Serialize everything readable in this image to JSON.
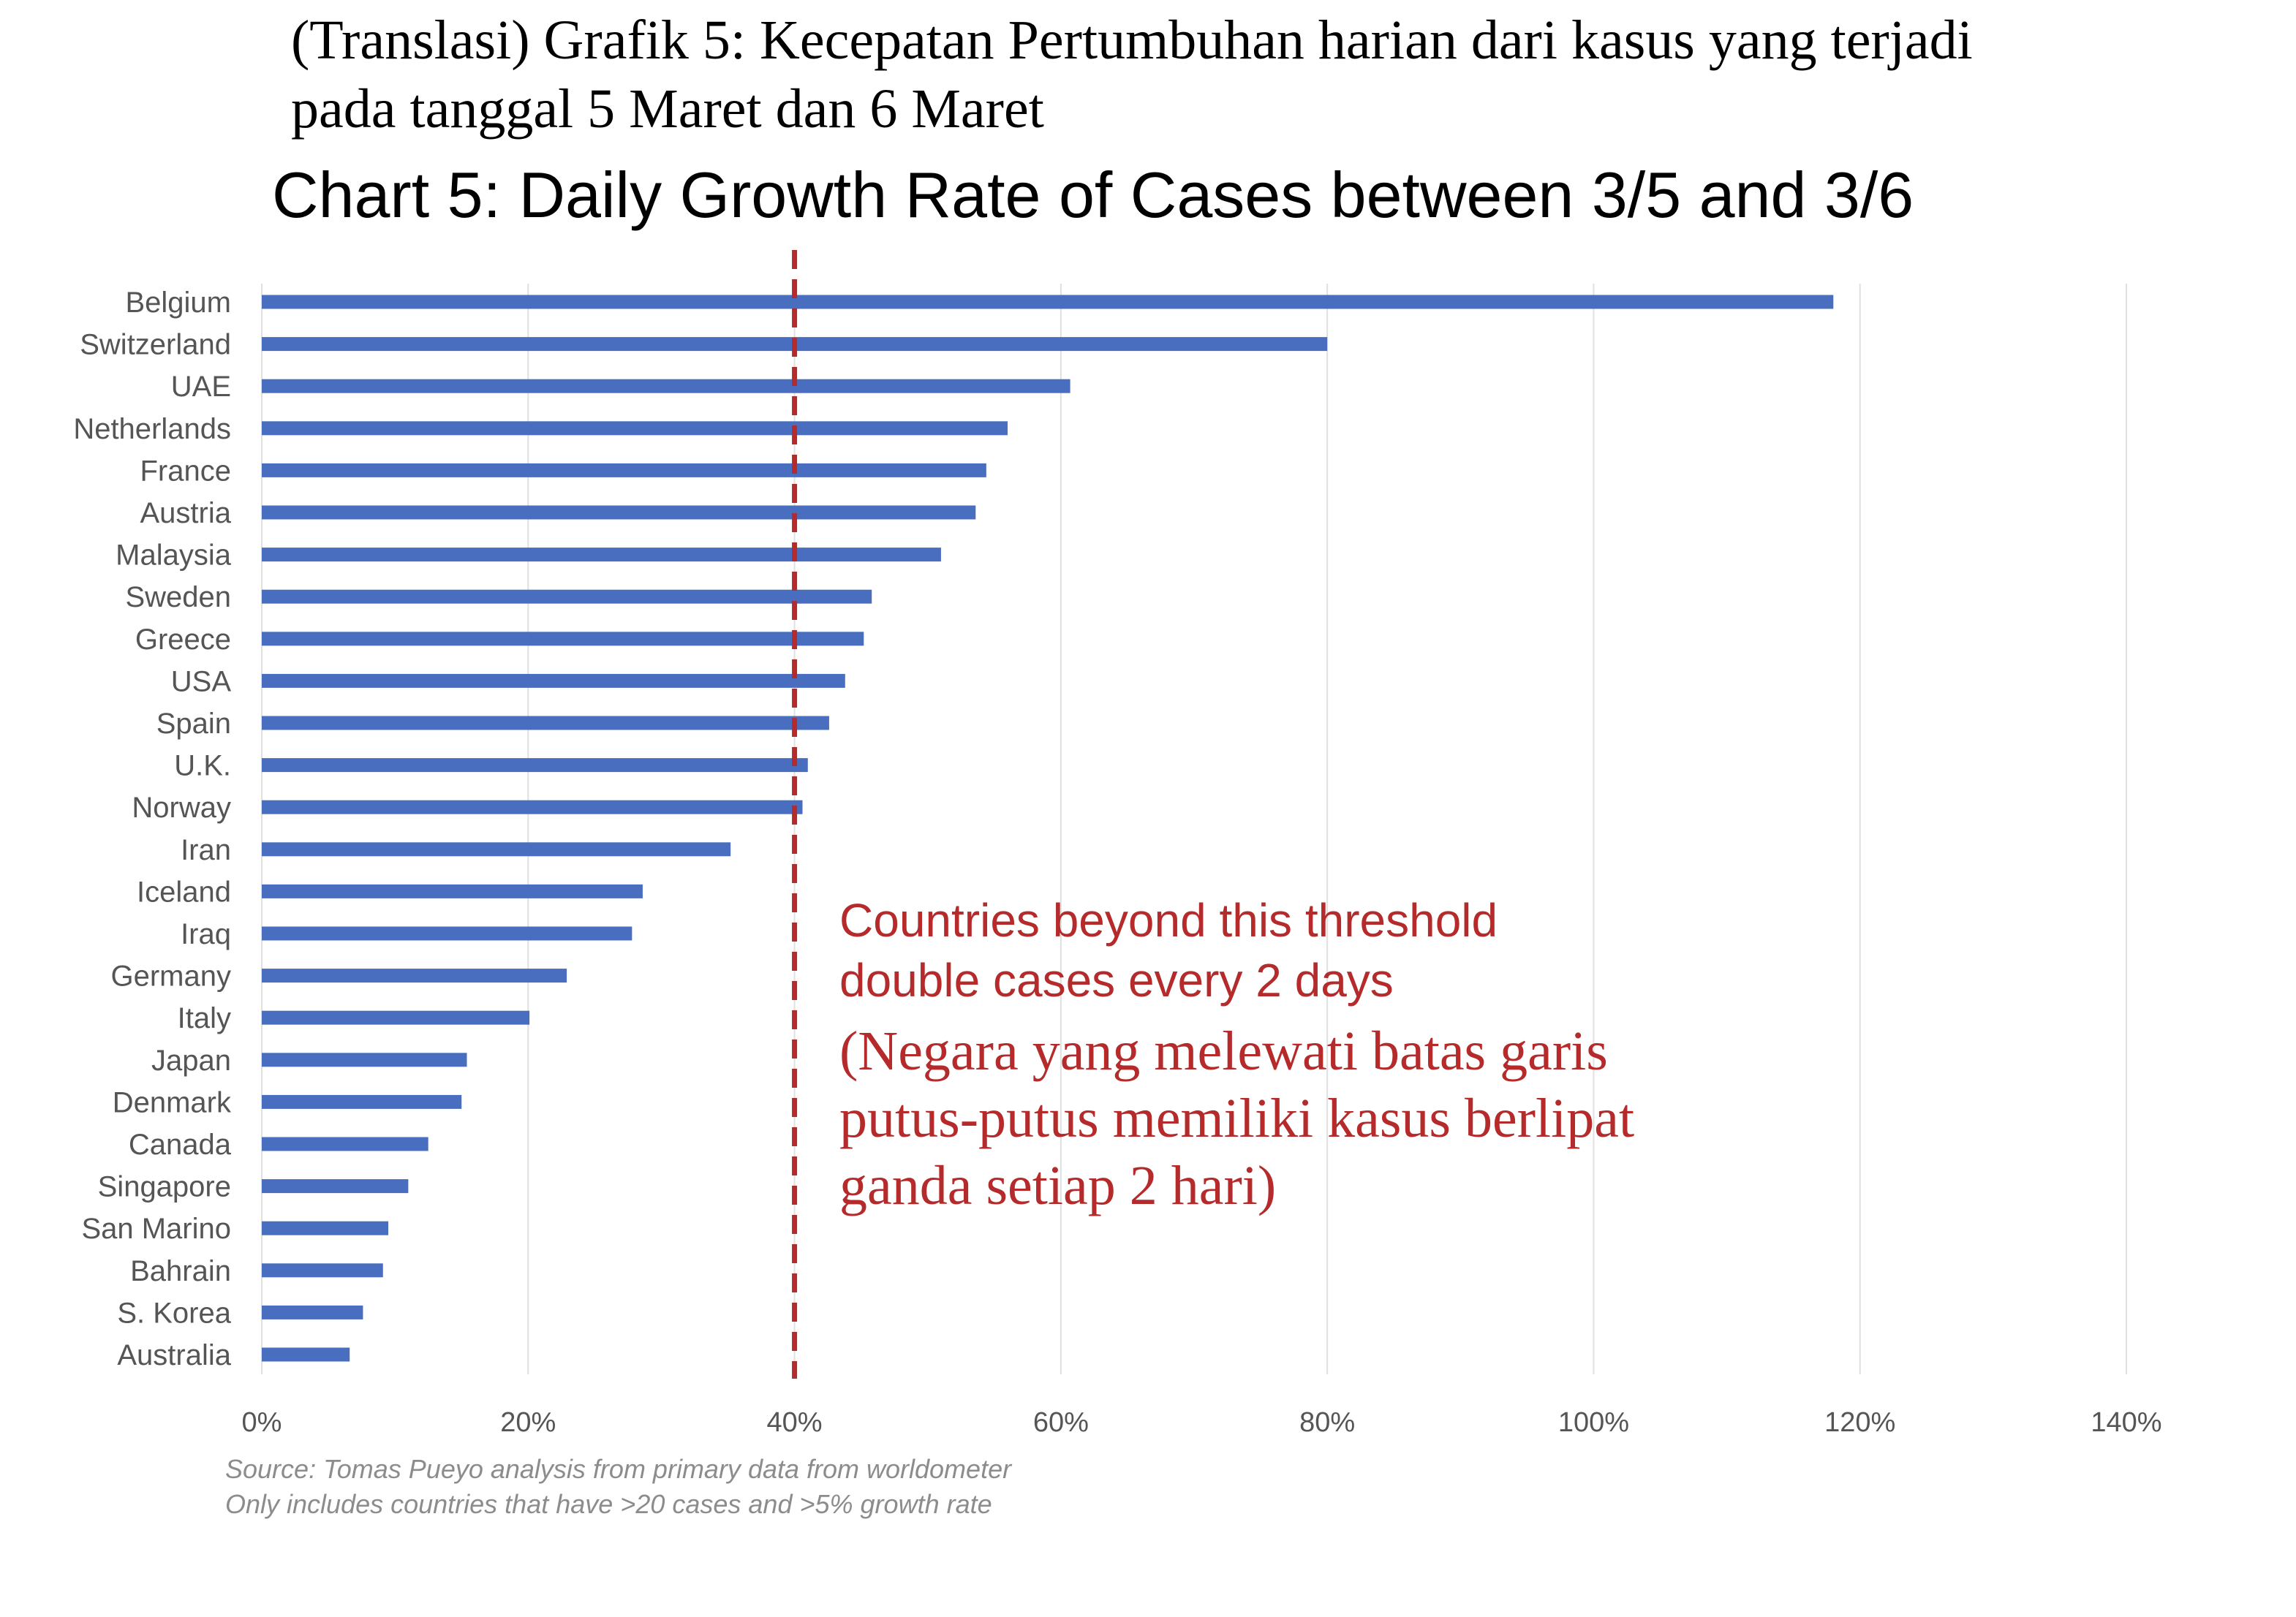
{
  "translated_title": {
    "line1": "(Translasi) Grafik 5: Kecepatan Pertumbuhan harian dari kasus yang terjadi",
    "line2": "pada tanggal 5 Maret dan 6 Maret"
  },
  "chart_data": {
    "type": "bar",
    "orientation": "horizontal",
    "title": "Chart 5: Daily Growth Rate of Cases between 3/5 and 3/6",
    "categories": [
      "Belgium",
      "Switzerland",
      "UAE",
      "Netherlands",
      "France",
      "Austria",
      "Malaysia",
      "Sweden",
      "Greece",
      "USA",
      "Spain",
      "U.K.",
      "Norway",
      "Iran",
      "Iceland",
      "Iraq",
      "Germany",
      "Italy",
      "Japan",
      "Denmark",
      "Canada",
      "Singapore",
      "San Marino",
      "Bahrain",
      "S. Korea",
      "Australia"
    ],
    "values": [
      118,
      80,
      60.7,
      56,
      54.4,
      53.6,
      51,
      45.8,
      45.2,
      43.8,
      42.6,
      41,
      40.6,
      35.2,
      28.6,
      27.8,
      22.9,
      20.1,
      15.4,
      15,
      12.5,
      11,
      9.5,
      9.1,
      7.6,
      6.6
    ],
    "xlim": [
      0,
      140
    ],
    "x_ticks": [
      "0%",
      "20%",
      "40%",
      "60%",
      "80%",
      "100%",
      "120%",
      "140%"
    ],
    "x_tick_values": [
      0,
      20,
      40,
      60,
      80,
      100,
      120,
      140
    ],
    "grid": true,
    "threshold": 40,
    "bar_color": "#4a6ebf",
    "threshold_color": "#b52a2a",
    "grid_color": "#e0e0e0",
    "label_color": "#555555"
  },
  "annotation": {
    "en_line1": "Countries beyond this threshold",
    "en_line2": "double cases every 2 days",
    "id_line1": "(Negara yang melewati batas garis",
    "id_line2": "putus-putus memiliki kasus berlipat",
    "id_line3": "ganda setiap 2 hari)"
  },
  "source": {
    "line1": "Source: Tomas Pueyo analysis from primary data from worldometer",
    "line2": "Only includes countries that have >20 cases and >5% growth rate"
  }
}
